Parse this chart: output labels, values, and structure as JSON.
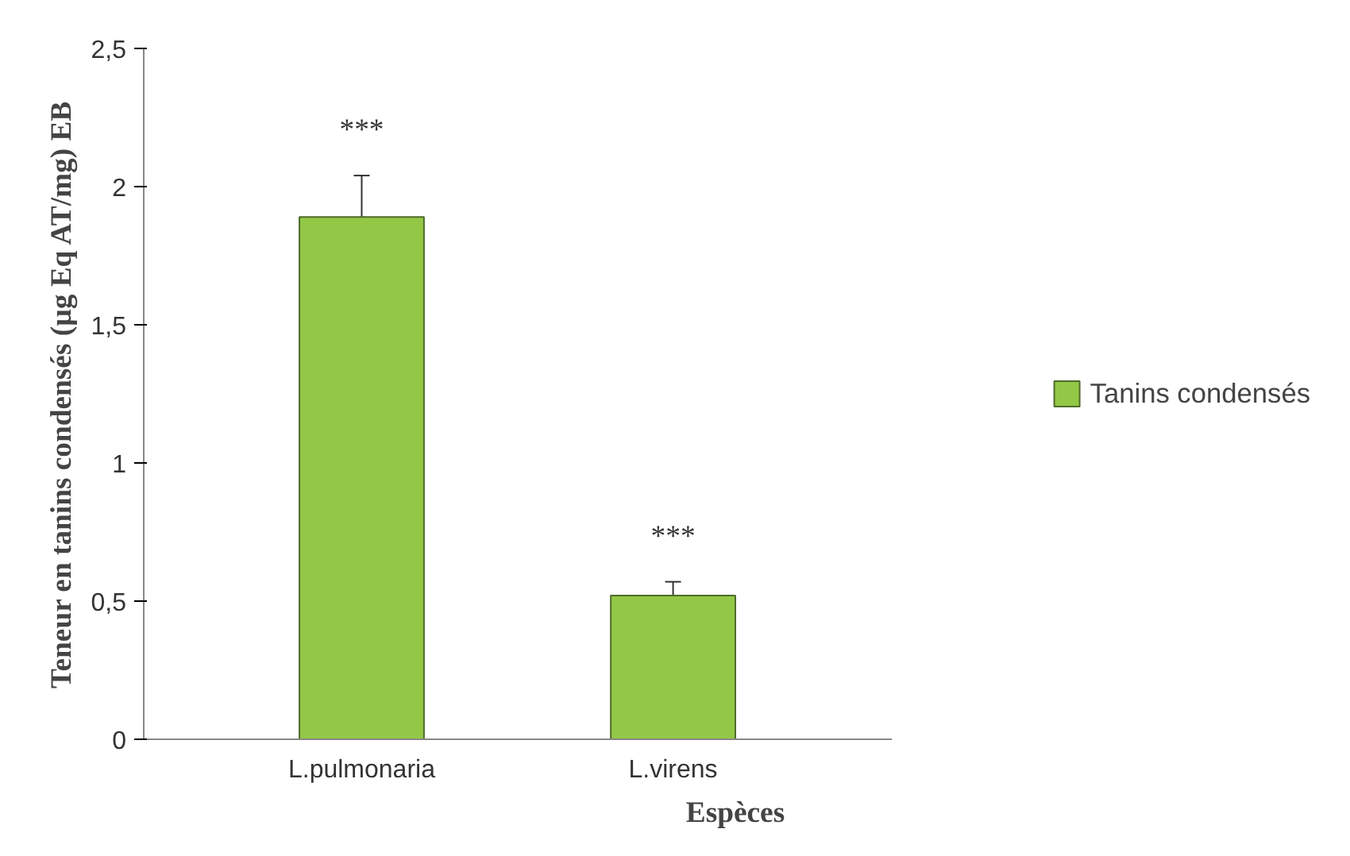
{
  "chart_data": {
    "type": "bar",
    "xlabel": "Espèces",
    "ylabel": "Teneur en tanins condensés (µg Eq AT/mg) EB",
    "categories": [
      "L.pulmonaria",
      "L.virens"
    ],
    "series": [
      {
        "name": "Tanins condensés",
        "color": "#92c846",
        "values": [
          1.89,
          0.52
        ],
        "errors": [
          0.15,
          0.05
        ]
      }
    ],
    "ylim": [
      0,
      2.5
    ],
    "yticks": [
      0,
      {
        "value": 0.5,
        "label": "0,5"
      },
      1,
      {
        "value": 1.5,
        "label": "1,5"
      },
      2,
      {
        "value": 2.5,
        "label": "2,5"
      }
    ],
    "annotations": [
      "***",
      "***"
    ],
    "grid": false,
    "legend": "right"
  }
}
